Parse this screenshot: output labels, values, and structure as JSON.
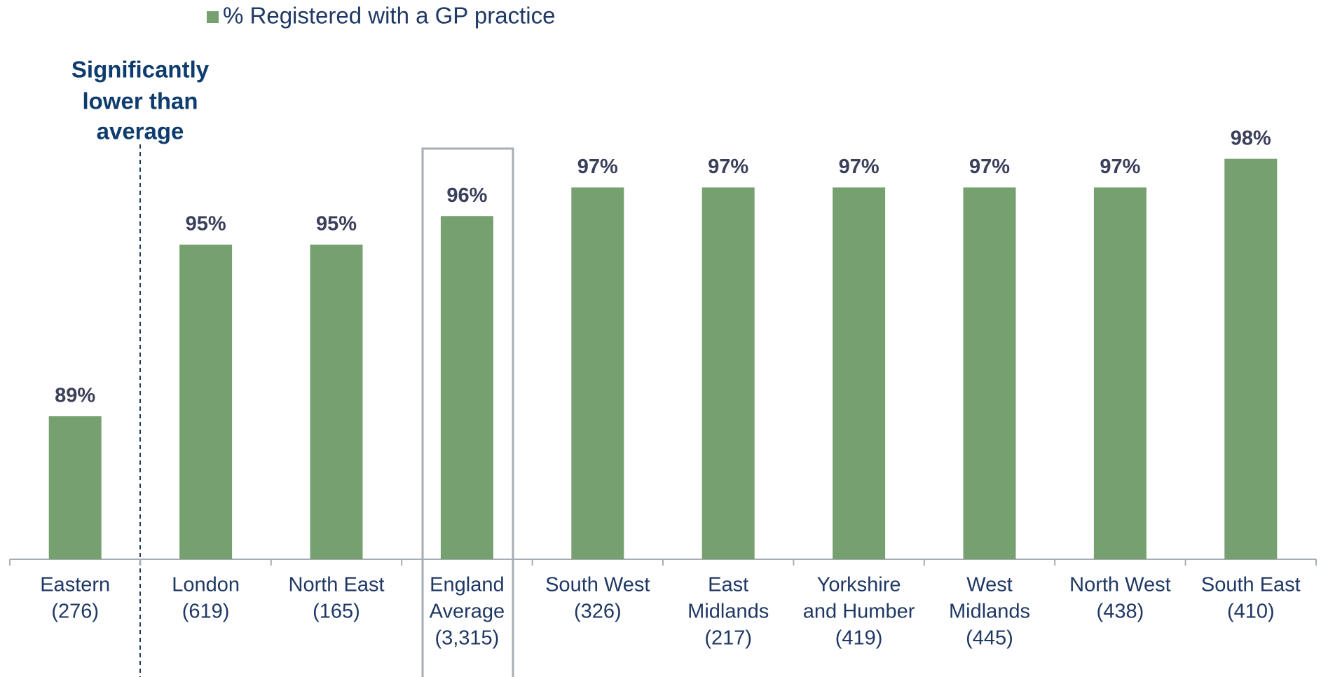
{
  "chart_data": {
    "type": "bar",
    "series": [
      {
        "name": "% Registered with a GP practice",
        "color": "#76a070",
        "values": [
          89,
          95,
          95,
          96,
          97,
          97,
          97,
          97,
          97,
          98
        ],
        "value_labels": [
          "89%",
          "95%",
          "95%",
          "96%",
          "97%",
          "97%",
          "97%",
          "97%",
          "97%",
          "98%"
        ]
      }
    ],
    "categories": [
      [
        "Eastern",
        "(276)"
      ],
      [
        "London",
        "(619)"
      ],
      [
        "North East",
        "(165)"
      ],
      [
        "England",
        "Average",
        "(3,315)"
      ],
      [
        "South West",
        "(326)"
      ],
      [
        "East",
        "Midlands",
        "(217)"
      ],
      [
        "Yorkshire",
        "and Humber",
        "(419)"
      ],
      [
        "West",
        "Midlands",
        "(445)"
      ],
      [
        "North West",
        "(438)"
      ],
      [
        "South East",
        "(410)"
      ]
    ],
    "annotation": [
      "Significantly",
      "lower than",
      "average"
    ],
    "ylim": [
      84,
      100
    ]
  }
}
